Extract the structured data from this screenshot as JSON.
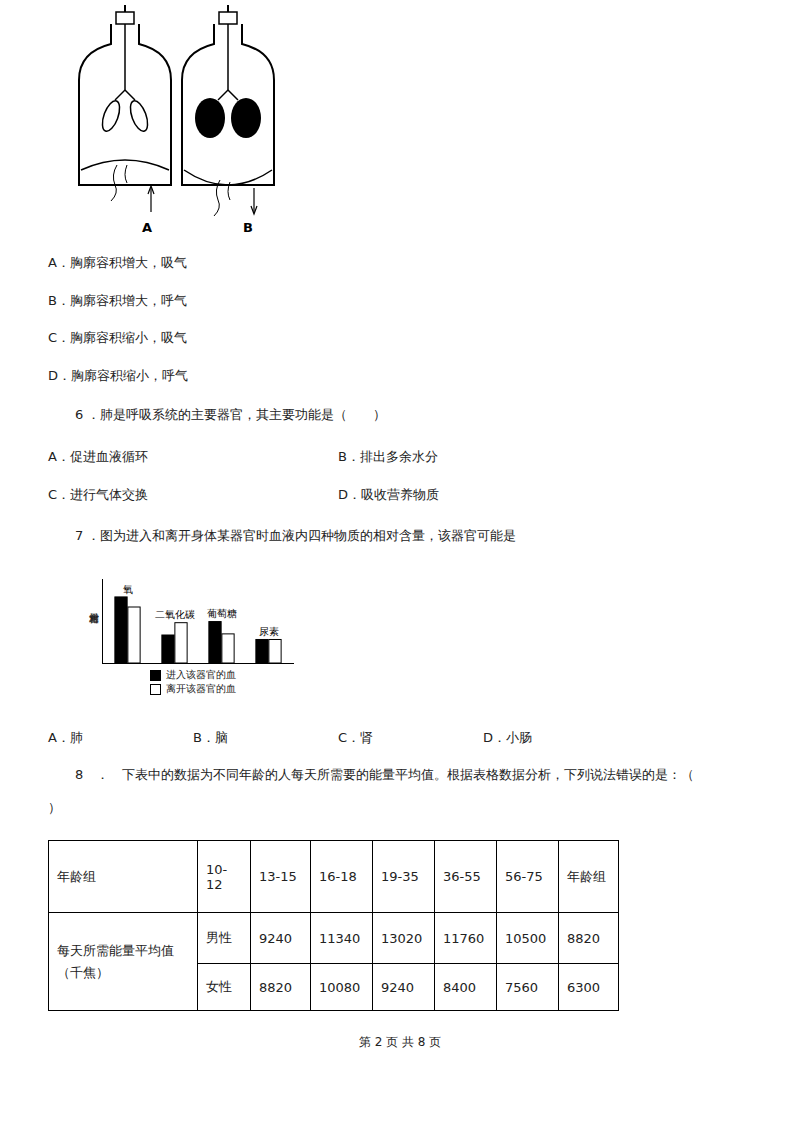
{
  "figure_q5": {
    "labels": [
      "A",
      "B"
    ]
  },
  "q5_options": [
    "A．胸廓容积增大，吸气",
    "B．胸廓容积增大，呼气",
    "C．胸廓容积缩小，吸气",
    "D．胸廓容积缩小，呼气"
  ],
  "q6": {
    "stem": "6 ．肺是呼吸系统的主要器官，其主要功能是（　　）",
    "options": [
      "A．促进血液循环",
      "B．排出多余水分",
      "C．进行气体交换",
      "D．吸收营养物质"
    ]
  },
  "q7": {
    "stem": "7 ．图为进入和离开身体某器官时血液内四种物质的相对含量，该器官可能是",
    "options": [
      "A．肺",
      "B．脑",
      "C．肾",
      "D．小肠"
    ]
  },
  "chart_data": {
    "type": "bar",
    "ylabel": "相对含量",
    "categories": [
      "氧",
      "二氧化碳",
      "葡萄糖",
      "尿素"
    ],
    "series": [
      {
        "name": "进入该器官的血",
        "color": "#000000",
        "values": [
          59,
          25,
          37,
          21
        ]
      },
      {
        "name": "离开该器官的血",
        "color": "#ffffff",
        "values": [
          50,
          36,
          26,
          21
        ]
      }
    ],
    "ylim": [
      0,
      75
    ],
    "yticks": [],
    "tick_labels": false,
    "legend": "bottom"
  },
  "q8": {
    "stem_lines": [
      "8　．　下表中的数据为不同年龄的人每天所需要的能量平均值。根据表格数据分析，下列说法错误的是：（",
      "）"
    ]
  },
  "table": {
    "header": [
      "年龄组",
      "10-12",
      "13-15",
      "16-18",
      "19-35",
      "36-55",
      "56-75",
      "年龄组"
    ],
    "row_label": "每天所需能量平均值（千焦）",
    "rows": [
      [
        "男性",
        9240,
        11340,
        13020,
        11760,
        10500,
        8820
      ],
      [
        "女性",
        8820,
        10080,
        9240,
        8400,
        7560,
        6300
      ]
    ]
  },
  "footer": "第 2 页 共 8 页"
}
